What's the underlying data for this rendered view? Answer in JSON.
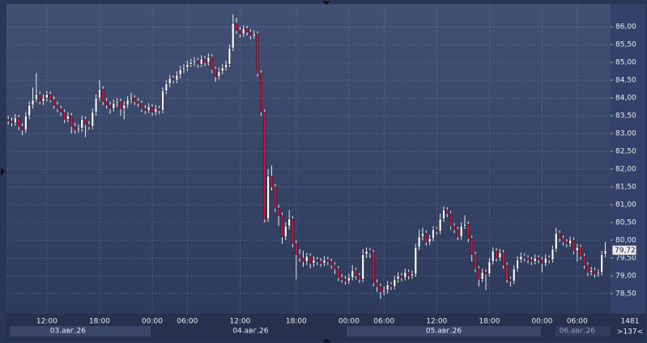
{
  "chart_data": {
    "type": "candlestick",
    "ohlc": [
      [
        83.4,
        83.5,
        83.25,
        83.35
      ],
      [
        83.35,
        83.45,
        83.2,
        83.3
      ],
      [
        83.3,
        83.55,
        83.22,
        83.45
      ],
      [
        83.45,
        83.52,
        83.1,
        83.2
      ],
      [
        83.2,
        83.28,
        82.95,
        83.1
      ],
      [
        83.1,
        83.6,
        83.02,
        83.5
      ],
      [
        83.5,
        83.9,
        83.4,
        83.8
      ],
      [
        83.8,
        84.3,
        83.7,
        83.95
      ],
      [
        83.95,
        84.7,
        83.88,
        84.1
      ],
      [
        84.1,
        84.18,
        83.82,
        83.9
      ],
      [
        83.9,
        84.1,
        83.8,
        84.0
      ],
      [
        84.0,
        84.2,
        83.9,
        84.1
      ],
      [
        84.1,
        84.18,
        83.88,
        83.95
      ],
      [
        83.95,
        84.05,
        83.7,
        83.8
      ],
      [
        83.8,
        83.9,
        83.6,
        83.7
      ],
      [
        83.7,
        83.78,
        83.5,
        83.6
      ],
      [
        83.6,
        83.68,
        83.3,
        83.4
      ],
      [
        83.4,
        83.6,
        83.32,
        83.5
      ],
      [
        83.5,
        83.58,
        83.0,
        83.2
      ],
      [
        83.2,
        83.3,
        83.0,
        83.1
      ],
      [
        83.1,
        83.25,
        83.02,
        83.15
      ],
      [
        83.15,
        83.5,
        83.05,
        83.4
      ],
      [
        83.4,
        83.48,
        82.9,
        83.25
      ],
      [
        83.25,
        83.35,
        83.1,
        83.2
      ],
      [
        83.2,
        83.7,
        83.12,
        83.6
      ],
      [
        83.6,
        84.1,
        83.5,
        84.0
      ],
      [
        84.0,
        84.5,
        83.92,
        84.25
      ],
      [
        84.25,
        84.33,
        83.8,
        83.9
      ],
      [
        83.9,
        84.0,
        83.7,
        83.8
      ],
      [
        83.8,
        83.9,
        83.55,
        83.7
      ],
      [
        83.7,
        83.95,
        83.62,
        83.85
      ],
      [
        83.85,
        84.0,
        83.75,
        83.9
      ],
      [
        83.9,
        83.98,
        83.5,
        83.7
      ],
      [
        83.7,
        83.9,
        83.4,
        83.8
      ],
      [
        83.8,
        84.05,
        83.72,
        83.95
      ],
      [
        83.95,
        84.15,
        83.85,
        84.0
      ],
      [
        84.0,
        84.08,
        83.8,
        83.9
      ],
      [
        83.9,
        84.0,
        83.75,
        83.85
      ],
      [
        83.85,
        83.93,
        83.6,
        83.7
      ],
      [
        83.7,
        83.8,
        83.55,
        83.65
      ],
      [
        83.65,
        83.85,
        83.57,
        83.75
      ],
      [
        83.75,
        83.83,
        83.5,
        83.6
      ],
      [
        83.6,
        83.8,
        83.52,
        83.7
      ],
      [
        83.7,
        83.78,
        83.55,
        83.65
      ],
      [
        83.65,
        84.3,
        83.57,
        84.2
      ],
      [
        84.2,
        84.5,
        84.1,
        84.4
      ],
      [
        84.4,
        84.65,
        84.3,
        84.55
      ],
      [
        84.55,
        84.63,
        84.4,
        84.5
      ],
      [
        84.5,
        84.75,
        84.42,
        84.65
      ],
      [
        84.65,
        84.9,
        84.55,
        84.8
      ],
      [
        84.8,
        84.95,
        84.7,
        84.85
      ],
      [
        84.85,
        85.05,
        84.75,
        84.95
      ],
      [
        84.95,
        85.1,
        84.87,
        85.0
      ],
      [
        85.0,
        85.15,
        84.9,
        85.05
      ],
      [
        85.05,
        85.13,
        84.85,
        84.95
      ],
      [
        84.95,
        85.2,
        84.87,
        85.1
      ],
      [
        85.1,
        85.18,
        84.9,
        85.0
      ],
      [
        85.0,
        85.25,
        84.92,
        85.15
      ],
      [
        85.15,
        85.23,
        84.7,
        84.8
      ],
      [
        84.8,
        84.88,
        84.45,
        84.6
      ],
      [
        84.6,
        84.85,
        84.52,
        84.75
      ],
      [
        84.75,
        84.95,
        84.67,
        84.85
      ],
      [
        84.85,
        85.05,
        84.77,
        84.95
      ],
      [
        84.95,
        85.5,
        84.87,
        85.4
      ],
      [
        85.4,
        86.35,
        85.32,
        86.1
      ],
      [
        86.1,
        86.25,
        85.8,
        85.9
      ],
      [
        85.9,
        86.0,
        85.7,
        85.8
      ],
      [
        85.8,
        86.05,
        85.72,
        85.95
      ],
      [
        85.95,
        86.03,
        85.75,
        85.85
      ],
      [
        85.85,
        85.93,
        85.65,
        85.75
      ],
      [
        85.75,
        85.9,
        85.67,
        85.8
      ],
      [
        85.8,
        85.88,
        84.6,
        84.7
      ],
      [
        84.7,
        84.78,
        83.5,
        83.6
      ],
      [
        83.6,
        83.68,
        80.5,
        80.6
      ],
      [
        80.6,
        82.0,
        80.52,
        81.8
      ],
      [
        81.8,
        82.1,
        81.4,
        81.5
      ],
      [
        81.5,
        81.58,
        80.8,
        80.9
      ],
      [
        80.9,
        81.0,
        80.4,
        80.7
      ],
      [
        80.7,
        80.78,
        79.9,
        80.1
      ],
      [
        80.1,
        80.5,
        80.0,
        80.4
      ],
      [
        80.4,
        80.85,
        80.3,
        80.6
      ],
      [
        80.6,
        80.68,
        79.8,
        79.9
      ],
      [
        79.9,
        80.0,
        78.9,
        79.6
      ],
      [
        79.6,
        79.75,
        79.4,
        79.5
      ],
      [
        79.5,
        79.7,
        79.25,
        79.4
      ],
      [
        79.4,
        79.65,
        79.3,
        79.55
      ],
      [
        79.55,
        79.63,
        79.2,
        79.35
      ],
      [
        79.35,
        79.55,
        79.25,
        79.45
      ],
      [
        79.45,
        79.53,
        79.3,
        79.4
      ],
      [
        79.4,
        79.5,
        79.25,
        79.35
      ],
      [
        79.35,
        79.55,
        79.27,
        79.45
      ],
      [
        79.45,
        79.53,
        79.3,
        79.4
      ],
      [
        79.4,
        79.48,
        79.2,
        79.3
      ],
      [
        79.3,
        79.38,
        79.05,
        79.2
      ],
      [
        79.2,
        79.28,
        78.85,
        78.95
      ],
      [
        78.95,
        79.05,
        78.8,
        78.9
      ],
      [
        78.9,
        79.0,
        78.75,
        78.85
      ],
      [
        78.85,
        79.05,
        78.77,
        78.95
      ],
      [
        78.95,
        79.3,
        78.87,
        79.15
      ],
      [
        79.15,
        79.23,
        78.9,
        79.0
      ],
      [
        79.0,
        79.08,
        78.8,
        78.9
      ],
      [
        78.9,
        79.75,
        78.82,
        79.6
      ],
      [
        79.6,
        79.8,
        79.5,
        79.7
      ],
      [
        79.7,
        79.78,
        79.5,
        79.65
      ],
      [
        79.65,
        79.73,
        78.7,
        78.8
      ],
      [
        78.8,
        78.9,
        78.55,
        78.7
      ],
      [
        78.7,
        78.78,
        78.35,
        78.55
      ],
      [
        78.55,
        78.7,
        78.45,
        78.6
      ],
      [
        78.6,
        78.85,
        78.5,
        78.75
      ],
      [
        78.75,
        78.83,
        78.6,
        78.7
      ],
      [
        78.7,
        79.0,
        78.62,
        78.9
      ],
      [
        78.9,
        79.1,
        78.8,
        79.0
      ],
      [
        79.0,
        79.08,
        78.85,
        78.95
      ],
      [
        78.95,
        79.2,
        78.87,
        79.1
      ],
      [
        79.1,
        79.18,
        78.9,
        79.0
      ],
      [
        79.0,
        79.15,
        78.92,
        79.05
      ],
      [
        79.05,
        79.9,
        78.97,
        79.8
      ],
      [
        79.8,
        80.3,
        79.72,
        80.1
      ],
      [
        80.1,
        80.35,
        80.0,
        80.2
      ],
      [
        80.2,
        80.28,
        79.85,
        79.95
      ],
      [
        79.95,
        80.15,
        79.87,
        80.05
      ],
      [
        80.05,
        80.4,
        79.97,
        80.3
      ],
      [
        80.3,
        80.38,
        80.15,
        80.25
      ],
      [
        80.25,
        80.75,
        80.17,
        80.6
      ],
      [
        80.6,
        80.95,
        80.52,
        80.85
      ],
      [
        80.85,
        80.93,
        80.65,
        80.75
      ],
      [
        80.75,
        80.83,
        80.3,
        80.4
      ],
      [
        80.4,
        80.48,
        80.2,
        80.3
      ],
      [
        80.3,
        80.38,
        80.0,
        80.1
      ],
      [
        80.1,
        80.5,
        80.02,
        80.4
      ],
      [
        80.4,
        80.7,
        80.32,
        80.45
      ],
      [
        80.45,
        80.53,
        79.95,
        80.05
      ],
      [
        80.05,
        80.13,
        79.4,
        79.6
      ],
      [
        79.6,
        79.68,
        79.1,
        79.2
      ],
      [
        79.2,
        79.28,
        78.7,
        78.9
      ],
      [
        78.9,
        79.2,
        78.82,
        79.1
      ],
      [
        79.1,
        79.18,
        78.6,
        79.05
      ],
      [
        79.05,
        79.5,
        78.97,
        79.4
      ],
      [
        79.4,
        79.8,
        79.32,
        79.7
      ],
      [
        79.7,
        79.78,
        79.4,
        79.5
      ],
      [
        79.5,
        79.75,
        79.42,
        79.65
      ],
      [
        79.65,
        79.73,
        79.2,
        79.3
      ],
      [
        79.3,
        79.38,
        78.8,
        78.9
      ],
      [
        78.9,
        78.98,
        78.7,
        78.85
      ],
      [
        78.85,
        79.3,
        78.77,
        79.2
      ],
      [
        79.2,
        79.55,
        79.12,
        79.45
      ],
      [
        79.45,
        79.65,
        79.37,
        79.55
      ],
      [
        79.55,
        79.63,
        79.4,
        79.5
      ],
      [
        79.5,
        79.58,
        79.35,
        79.45
      ],
      [
        79.45,
        79.53,
        79.3,
        79.4
      ],
      [
        79.4,
        79.6,
        79.32,
        79.5
      ],
      [
        79.5,
        79.58,
        79.35,
        79.45
      ],
      [
        79.45,
        79.53,
        79.1,
        79.35
      ],
      [
        79.35,
        79.6,
        79.27,
        79.5
      ],
      [
        79.5,
        79.58,
        79.35,
        79.45
      ],
      [
        79.45,
        79.85,
        79.37,
        79.75
      ],
      [
        79.75,
        80.35,
        79.67,
        80.2
      ],
      [
        80.2,
        80.28,
        79.95,
        80.05
      ],
      [
        80.05,
        80.13,
        79.85,
        79.95
      ],
      [
        79.95,
        80.03,
        79.8,
        79.9
      ],
      [
        79.9,
        80.1,
        79.82,
        80.0
      ],
      [
        80.0,
        80.08,
        79.6,
        79.7
      ],
      [
        79.7,
        79.9,
        79.4,
        79.8
      ],
      [
        79.8,
        79.88,
        79.45,
        79.55
      ],
      [
        79.55,
        79.63,
        79.2,
        79.3
      ],
      [
        79.3,
        79.38,
        79.0,
        79.1
      ],
      [
        79.1,
        79.25,
        79.02,
        79.15
      ],
      [
        79.15,
        79.23,
        78.95,
        79.05
      ],
      [
        79.05,
        79.18,
        78.97,
        79.1
      ],
      [
        79.1,
        79.7,
        79.02,
        79.6
      ],
      [
        79.6,
        79.95,
        79.52,
        79.72
      ]
    ],
    "xlim": [
      -0.5,
      171.5
    ],
    "ylim": [
      77.93,
      86.64
    ],
    "yticks": [
      {
        "value": 86,
        "label": "86,00"
      },
      {
        "value": 85.5,
        "label": "85,50"
      },
      {
        "value": 85,
        "label": "85,00"
      },
      {
        "value": 84.5,
        "label": "84,50"
      },
      {
        "value": 84,
        "label": "84,00"
      },
      {
        "value": 83.5,
        "label": "83,50"
      },
      {
        "value": 83,
        "label": "83,00"
      },
      {
        "value": 82.5,
        "label": "82,50"
      },
      {
        "value": 82,
        "label": "82,00"
      },
      {
        "value": 81.5,
        "label": "81,50"
      },
      {
        "value": 81,
        "label": "81,00"
      },
      {
        "value": 80.5,
        "label": "80,50"
      },
      {
        "value": 80,
        "label": "80,00"
      },
      {
        "value": 79.5,
        "label": "79,50"
      },
      {
        "value": 79,
        "label": "79,00"
      },
      {
        "value": 78.5,
        "label": "78,50"
      }
    ],
    "xticks": [
      {
        "value": 11,
        "label": "12:00"
      },
      {
        "value": 26,
        "label": "18:00"
      },
      {
        "value": 41,
        "label": "00:00"
      },
      {
        "value": 51,
        "label": "06:00"
      },
      {
        "value": 66,
        "label": "12:00"
      },
      {
        "value": 82,
        "label": "18:00"
      },
      {
        "value": 97,
        "label": "00:00"
      },
      {
        "value": 107,
        "label": "06:00"
      },
      {
        "value": 122,
        "label": "12:00"
      },
      {
        "value": 137,
        "label": "18:00"
      },
      {
        "value": 152,
        "label": "00:00"
      },
      {
        "value": 162,
        "label": "06:00"
      }
    ],
    "date_ticks": [
      {
        "value": 17,
        "label": "03.авг.26"
      },
      {
        "value": 69,
        "label": "04.авг.26"
      },
      {
        "value": 124,
        "label": "05.авг.26"
      },
      {
        "value": 162,
        "label": "06.авг.26"
      }
    ],
    "last_price": {
      "value": 79.72,
      "label": "79,72"
    },
    "bar_count": 1481,
    "scroll": ">137<",
    "up_color": "#ffffff",
    "down_color": "#c8143c",
    "grid": true
  }
}
